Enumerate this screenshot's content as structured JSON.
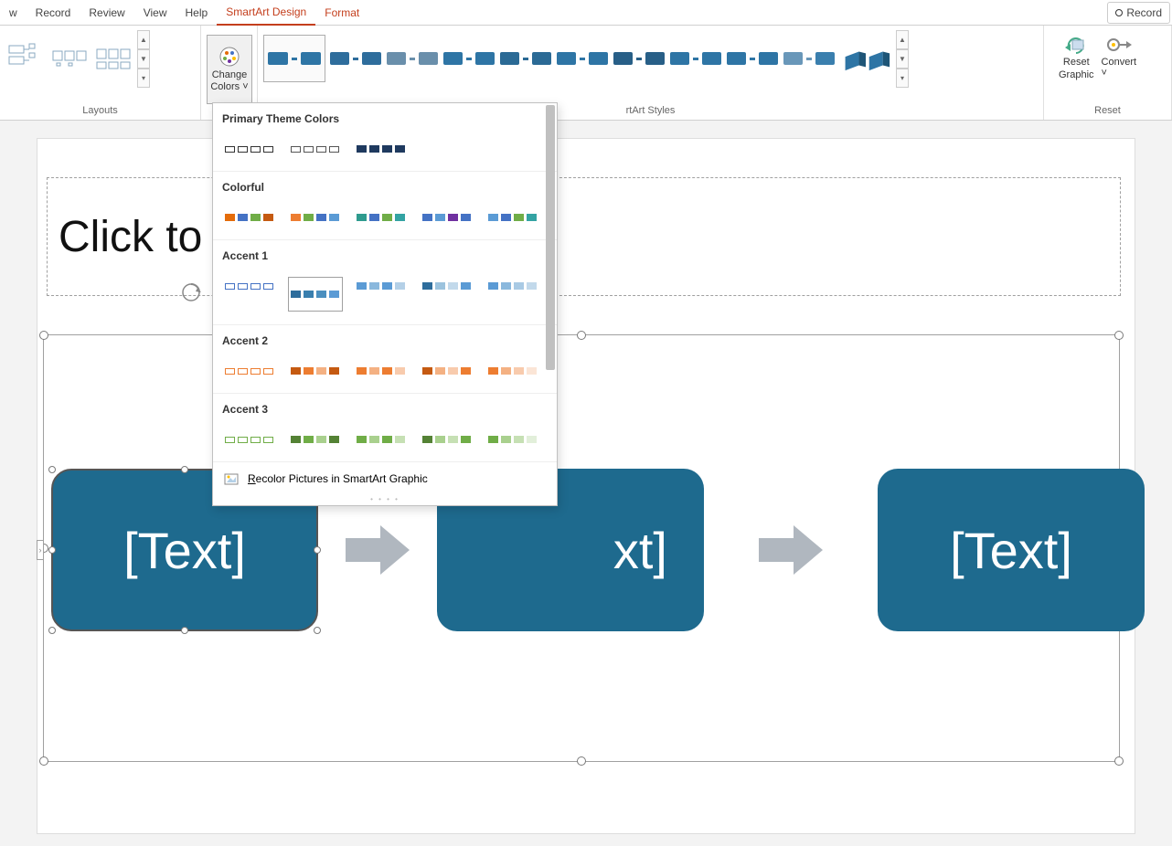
{
  "ribbon": {
    "tabs": [
      "w",
      "Record",
      "Review",
      "View",
      "Help",
      "SmartArt Design",
      "Format"
    ],
    "active_tab": "SmartArt Design",
    "record_btn": "Record"
  },
  "groups": {
    "layouts": {
      "label": "Layouts"
    },
    "change_colors": {
      "label_l1": "Change",
      "label_l2": "Colors"
    },
    "styles": {
      "label": "rtArt Styles"
    },
    "reset": {
      "label": "Reset",
      "reset_graphic_l1": "Reset",
      "reset_graphic_l2": "Graphic",
      "convert": "Convert"
    }
  },
  "styles_gallery": {
    "base_color": "#2e75a5",
    "thumbs": [
      {
        "current": true,
        "a": "#2e75a5",
        "b": "#2e75a5"
      },
      {
        "a": "#2e6d9c",
        "b": "#2e6d9c"
      },
      {
        "a": "#6a8fab",
        "b": "#6a8fab"
      },
      {
        "a": "#2e75a5",
        "b": "#2e75a5"
      },
      {
        "a": "#2b6a95",
        "b": "#2b6a95"
      },
      {
        "a": "#2e75a5",
        "b": "#2e75a5"
      },
      {
        "a": "#285f87",
        "b": "#285f87"
      },
      {
        "a": "#2e75a5",
        "b": "#2e75a5"
      },
      {
        "a": "#2e75a5",
        "b": "#2e75a5"
      },
      {
        "a": "#6997b9",
        "b": "#3a7fae"
      },
      {
        "a": "#2e75a5",
        "b": "#2e75a5",
        "iso": true
      }
    ]
  },
  "dropdown": {
    "sections": [
      {
        "title": "Primary Theme Colors",
        "swatches": [
          {
            "type": "outline",
            "colors": [
              "#333",
              "#333",
              "#333",
              "#333"
            ]
          },
          {
            "type": "outline",
            "colors": [
              "#555",
              "#555",
              "#555",
              "#555"
            ]
          },
          {
            "type": "solid",
            "colors": [
              "#1f3a5f",
              "#1f3a5f",
              "#1f3a5f",
              "#1f3a5f"
            ]
          }
        ]
      },
      {
        "title": "Colorful",
        "swatches": [
          {
            "type": "solid",
            "colors": [
              "#e46c0a",
              "#4472c4",
              "#70ad47",
              "#c55a11"
            ]
          },
          {
            "type": "solid",
            "colors": [
              "#ed7d31",
              "#70ad47",
              "#4472c4",
              "#5b9bd5"
            ]
          },
          {
            "type": "solid",
            "colors": [
              "#2e9b8e",
              "#4472c4",
              "#70ad47",
              "#33a3a3"
            ]
          },
          {
            "type": "solid",
            "colors": [
              "#4472c4",
              "#5b9bd5",
              "#7030a0",
              "#4472c4"
            ]
          },
          {
            "type": "solid",
            "colors": [
              "#5b9bd5",
              "#4472c4",
              "#70ad47",
              "#33a3a3"
            ]
          }
        ]
      },
      {
        "title": "Accent 1",
        "swatches": [
          {
            "type": "outline",
            "colors": [
              "#4472c4",
              "#4472c4",
              "#4472c4",
              "#4472c4"
            ]
          },
          {
            "type": "solid",
            "hover": true,
            "colors": [
              "#2e6d9c",
              "#3a7fae",
              "#4b8fbf",
              "#5b9bd5"
            ]
          },
          {
            "type": "solid",
            "colors": [
              "#5b9bd5",
              "#8ab8dd",
              "#5b9bd5",
              "#b4d0e7"
            ]
          },
          {
            "type": "solid",
            "colors": [
              "#2e6d9c",
              "#9cc3de",
              "#c2d9eb",
              "#5b9bd5"
            ]
          },
          {
            "type": "solid",
            "colors": [
              "#5b9bd5",
              "#8ab8dd",
              "#a9cae4",
              "#c2d9eb"
            ]
          }
        ]
      },
      {
        "title": "Accent 2",
        "swatches": [
          {
            "type": "outline",
            "colors": [
              "#ed7d31",
              "#ed7d31",
              "#ed7d31",
              "#ed7d31"
            ]
          },
          {
            "type": "solid",
            "colors": [
              "#c55a11",
              "#ed7d31",
              "#f4b183",
              "#c55a11"
            ]
          },
          {
            "type": "solid",
            "colors": [
              "#ed7d31",
              "#f4b183",
              "#ed7d31",
              "#f8cbad"
            ]
          },
          {
            "type": "solid",
            "colors": [
              "#c55a11",
              "#f4b183",
              "#f8cbad",
              "#ed7d31"
            ]
          },
          {
            "type": "solid",
            "colors": [
              "#ed7d31",
              "#f4b183",
              "#f8cbad",
              "#fbe5d6"
            ]
          }
        ]
      },
      {
        "title": "Accent 3",
        "swatches": [
          {
            "type": "outline",
            "colors": [
              "#70ad47",
              "#70ad47",
              "#70ad47",
              "#70ad47"
            ]
          },
          {
            "type": "solid",
            "colors": [
              "#548235",
              "#70ad47",
              "#a9d08e",
              "#548235"
            ]
          },
          {
            "type": "solid",
            "colors": [
              "#70ad47",
              "#a9d08e",
              "#70ad47",
              "#c6e0b4"
            ]
          },
          {
            "type": "solid",
            "colors": [
              "#548235",
              "#a9d08e",
              "#c6e0b4",
              "#70ad47"
            ]
          },
          {
            "type": "solid",
            "colors": [
              "#70ad47",
              "#a9d08e",
              "#c6e0b4",
              "#e2efda"
            ]
          }
        ]
      }
    ],
    "footer": "Recolor Pictures in SmartArt Graphic",
    "footer_accel": "R"
  },
  "slide": {
    "title_placeholder": "Click to a",
    "smartart": {
      "node_color": "#1e6a8e",
      "arrow_color": "#b0b7bf",
      "nodes": [
        "[Text]",
        "xt]",
        "[Text]"
      ]
    }
  }
}
